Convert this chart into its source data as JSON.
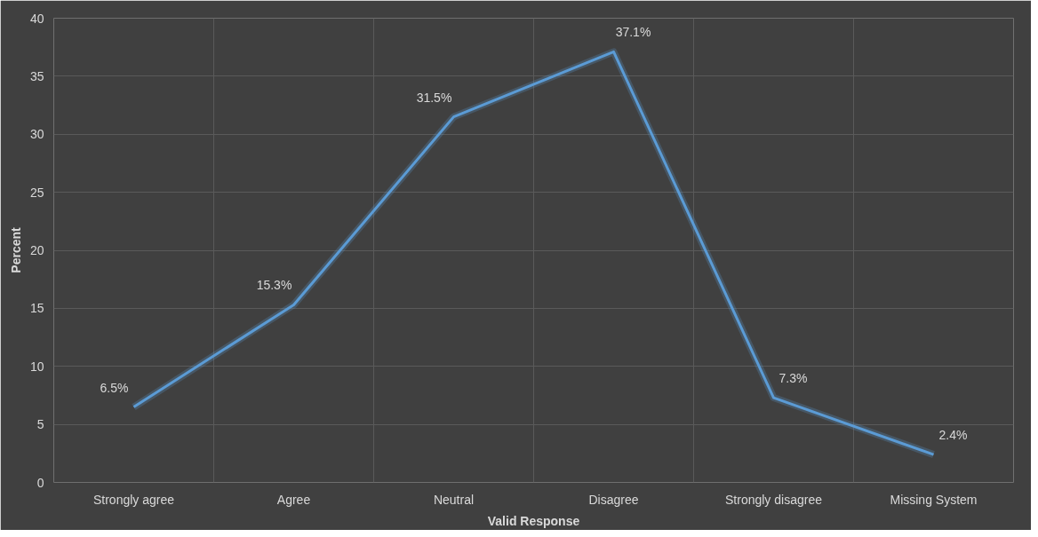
{
  "chart_data": {
    "type": "line",
    "xlabel": "Valid Response",
    "ylabel": "Percent",
    "categories": [
      "Strongly agree",
      "Agree",
      "Neutral",
      "Disagree",
      "Strongly disagree",
      "Missing System"
    ],
    "series": [
      {
        "color": "#5b9bd5",
        "values": [
          6.5,
          15.3,
          31.5,
          37.1,
          7.3,
          2.4
        ],
        "value_labels": [
          "6.5%",
          "15.3%",
          "31.5%",
          "37.1%",
          "7.3%",
          "2.4%"
        ]
      }
    ],
    "ylim": [
      0,
      40
    ],
    "yticks": [
      0,
      5,
      10,
      15,
      20,
      25,
      30,
      35,
      40
    ],
    "grid": true,
    "marker": "none",
    "line_style": "solid"
  }
}
